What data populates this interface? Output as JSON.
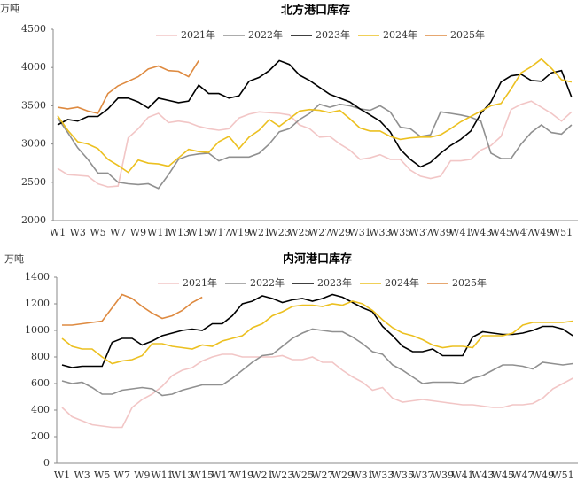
{
  "chart_data": [
    {
      "type": "line",
      "title": "北方港口库存",
      "y_label": "万吨",
      "categories": [
        "W1",
        null,
        "W3",
        null,
        "W5",
        null,
        "W7",
        null,
        "W9",
        null,
        "W11",
        null,
        "W13",
        null,
        "W15",
        null,
        "W17",
        null,
        "W19",
        null,
        "W21",
        null,
        "W23",
        null,
        "W25",
        null,
        "W27",
        null,
        "W29",
        null,
        "W31",
        null,
        "W33",
        null,
        "W35",
        null,
        "W37",
        null,
        "W39",
        null,
        "W41",
        null,
        "W43",
        null,
        "W45",
        null,
        "W47",
        null,
        "W49",
        null,
        "W51",
        null
      ],
      "ylim": [
        2000,
        4500
      ],
      "yticks": [
        2000,
        2500,
        3000,
        3500,
        4000,
        4500
      ],
      "grid": false,
      "legend": "top",
      "series": [
        {
          "name": "2021年",
          "color": "#f2c6c6",
          "values": [
            2680,
            2600,
            2590,
            2580,
            2480,
            2440,
            2450,
            3080,
            3200,
            3350,
            3400,
            3280,
            3300,
            3280,
            3230,
            3200,
            3180,
            3200,
            3340,
            3390,
            3420,
            3410,
            3400,
            3380,
            3250,
            3200,
            3090,
            3100,
            3000,
            2920,
            2800,
            2820,
            2860,
            2800,
            2800,
            2660,
            2580,
            2550,
            2580,
            2780,
            2780,
            2800,
            2920,
            2980,
            3100,
            3450,
            3520,
            3560,
            3480,
            3400,
            3300,
            3420
          ]
        },
        {
          "name": "2022年",
          "color": "#909090",
          "values": [
            3340,
            3150,
            2950,
            2800,
            2620,
            2620,
            2500,
            2480,
            2470,
            2480,
            2420,
            2600,
            2800,
            2850,
            2870,
            2880,
            2780,
            2830,
            2830,
            2830,
            2880,
            3000,
            3160,
            3200,
            3320,
            3400,
            3520,
            3480,
            3520,
            3500,
            3460,
            3440,
            3500,
            3420,
            3220,
            3200,
            3100,
            3120,
            3420,
            3400,
            3380,
            3350,
            3300,
            2880,
            2810,
            2810,
            3000,
            3150,
            3250,
            3150,
            3130,
            3250
          ]
        },
        {
          "name": "2023年",
          "color": "#000000",
          "values": [
            3250,
            3320,
            3300,
            3360,
            3360,
            3460,
            3600,
            3600,
            3550,
            3470,
            3600,
            3570,
            3540,
            3560,
            3770,
            3660,
            3660,
            3600,
            3630,
            3820,
            3870,
            3960,
            4090,
            4040,
            3900,
            3830,
            3740,
            3650,
            3600,
            3550,
            3460,
            3380,
            3300,
            3160,
            2930,
            2800,
            2700,
            2760,
            2880,
            2980,
            3060,
            3170,
            3400,
            3550,
            3810,
            3890,
            3910,
            3830,
            3820,
            3930,
            3960,
            3610
          ]
        },
        {
          "name": "2024年",
          "color": "#ecc020",
          "values": [
            3370,
            3180,
            3030,
            3000,
            2940,
            2800,
            2720,
            2630,
            2790,
            2750,
            2740,
            2710,
            2820,
            2930,
            2900,
            2890,
            3030,
            3100,
            2940,
            3090,
            3180,
            3320,
            3230,
            3330,
            3430,
            3450,
            3440,
            3410,
            3440,
            3330,
            3210,
            3170,
            3170,
            3100,
            3060,
            3080,
            3090,
            3090,
            3120,
            3200,
            3290,
            3360,
            3430,
            3500,
            3530,
            3720,
            3930,
            4010,
            4110,
            3990,
            3840,
            3810
          ]
        },
        {
          "name": "2025年",
          "color": "#de8a40",
          "values": [
            3480,
            3460,
            3480,
            3430,
            3400,
            3660,
            3760,
            3820,
            3880,
            3980,
            4020,
            3960,
            3950,
            3880,
            4090,
            null,
            null,
            null,
            null,
            null,
            null,
            null,
            null,
            null,
            null,
            null,
            null,
            null,
            null,
            null,
            null,
            null,
            null,
            null,
            null,
            null,
            null,
            null,
            null,
            null,
            null,
            null,
            null,
            null,
            null,
            null,
            null,
            null,
            null,
            null,
            null,
            null
          ]
        }
      ]
    },
    {
      "type": "line",
      "title": "内河港口库存",
      "y_label": "万吨",
      "categories": [
        "W1",
        null,
        "W3",
        null,
        "W5",
        null,
        "W7",
        null,
        "W9",
        null,
        "W11",
        null,
        "W13",
        null,
        "W15",
        null,
        "W17",
        null,
        "W19",
        null,
        "W21",
        null,
        "W23",
        null,
        "W25",
        null,
        "W27",
        null,
        "W29",
        null,
        "W31",
        null,
        "W33",
        null,
        "W35",
        null,
        "W37",
        null,
        "W39",
        null,
        "W41",
        null,
        "W43",
        null,
        "W45",
        null,
        "W47",
        null,
        "W49",
        null,
        "W51",
        null
      ],
      "ylim": [
        0,
        1400
      ],
      "yticks": [
        0,
        200,
        400,
        600,
        800,
        1000,
        1200,
        1400
      ],
      "grid": false,
      "legend": "top",
      "series": [
        {
          "name": "2021年",
          "color": "#f2c6c6",
          "values": [
            420,
            350,
            320,
            290,
            280,
            270,
            270,
            420,
            480,
            520,
            580,
            660,
            700,
            720,
            770,
            800,
            820,
            820,
            800,
            800,
            800,
            800,
            810,
            780,
            780,
            800,
            760,
            760,
            700,
            650,
            610,
            550,
            570,
            490,
            460,
            470,
            480,
            470,
            460,
            450,
            440,
            440,
            430,
            420,
            420,
            440,
            440,
            450,
            490,
            560,
            600,
            640
          ]
        },
        {
          "name": "2022年",
          "color": "#909090",
          "values": [
            620,
            600,
            610,
            570,
            520,
            520,
            550,
            560,
            570,
            560,
            510,
            520,
            550,
            570,
            590,
            590,
            590,
            640,
            700,
            760,
            810,
            820,
            880,
            940,
            980,
            1010,
            1000,
            990,
            990,
            950,
            900,
            840,
            820,
            740,
            700,
            650,
            600,
            610,
            610,
            610,
            600,
            640,
            660,
            700,
            740,
            740,
            730,
            710,
            760,
            750,
            740,
            750
          ]
        },
        {
          "name": "2023年",
          "color": "#000000",
          "values": [
            740,
            720,
            730,
            730,
            730,
            910,
            940,
            940,
            890,
            920,
            960,
            980,
            1000,
            1010,
            1000,
            1050,
            1050,
            1110,
            1200,
            1220,
            1260,
            1240,
            1210,
            1230,
            1240,
            1220,
            1240,
            1270,
            1250,
            1210,
            1170,
            1140,
            1030,
            960,
            880,
            840,
            840,
            860,
            810,
            810,
            810,
            950,
            990,
            980,
            970,
            970,
            980,
            1000,
            1030,
            1030,
            1010,
            960
          ]
        },
        {
          "name": "2024年",
          "color": "#ecc020",
          "values": [
            940,
            880,
            860,
            860,
            800,
            750,
            770,
            780,
            810,
            900,
            900,
            880,
            870,
            860,
            890,
            880,
            920,
            940,
            960,
            1020,
            1050,
            1110,
            1140,
            1180,
            1190,
            1190,
            1180,
            1200,
            1190,
            1220,
            1200,
            1150,
            1080,
            1020,
            980,
            960,
            930,
            890,
            870,
            880,
            880,
            870,
            960,
            960,
            960,
            980,
            1040,
            1060,
            1060,
            1060,
            1060,
            1070
          ]
        },
        {
          "name": "2025年",
          "color": "#de8a40",
          "values": [
            1040,
            1040,
            1050,
            1060,
            1070,
            1170,
            1270,
            1240,
            1180,
            1130,
            1090,
            1110,
            1150,
            1210,
            1250,
            null,
            null,
            null,
            null,
            null,
            null,
            null,
            null,
            null,
            null,
            null,
            null,
            null,
            null,
            null,
            null,
            null,
            null,
            null,
            null,
            null,
            null,
            null,
            null,
            null,
            null,
            null,
            null,
            null,
            null,
            null,
            null,
            null,
            null,
            null,
            null,
            null
          ]
        }
      ]
    }
  ]
}
